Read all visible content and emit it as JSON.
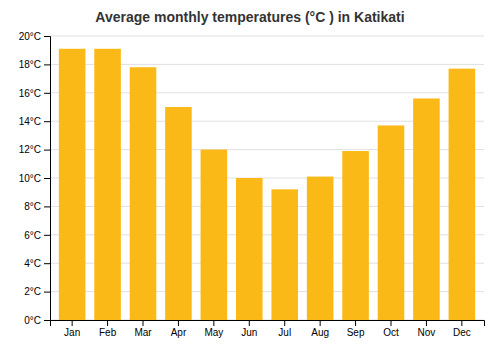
{
  "chart_data": {
    "type": "bar",
    "title": "Average monthly temperatures (°C ) in Katikati",
    "categories": [
      "Jan",
      "Feb",
      "Mar",
      "Apr",
      "May",
      "Jun",
      "Jul",
      "Aug",
      "Sep",
      "Oct",
      "Nov",
      "Dec"
    ],
    "values": [
      19.1,
      19.1,
      17.8,
      15.0,
      12.0,
      10.0,
      9.2,
      10.1,
      11.9,
      13.7,
      15.6,
      17.7
    ],
    "color": "#FBB917",
    "ylim": [
      0,
      20
    ],
    "yticks": [
      {
        "value": 0,
        "label": "0°C"
      },
      {
        "value": 2,
        "label": "2°C"
      },
      {
        "value": 4,
        "label": "4°C"
      },
      {
        "value": 6,
        "label": "6°C"
      },
      {
        "value": 8,
        "label": "8°C"
      },
      {
        "value": 10,
        "label": "10°C"
      },
      {
        "value": 12,
        "label": "12°C"
      },
      {
        "value": 14,
        "label": "14°C"
      },
      {
        "value": 16,
        "label": "16°C"
      },
      {
        "value": 18,
        "label": "18°C"
      },
      {
        "value": 20,
        "label": "20°C"
      }
    ],
    "grid": true
  }
}
